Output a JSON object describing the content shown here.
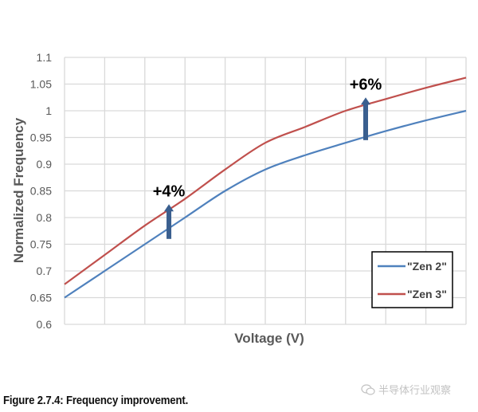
{
  "chart_data": {
    "type": "line",
    "title": "",
    "xlabel": "Voltage (V)",
    "ylabel": "Normalized Frequency",
    "ylim": [
      0.6,
      1.1
    ],
    "yticks": [
      0.6,
      0.65,
      0.7,
      0.75,
      0.8,
      0.85,
      0.9,
      0.95,
      1,
      1.05,
      1.1
    ],
    "ytick_labels": [
      "0.6",
      "0.65",
      "0.7",
      "0.75",
      "0.8",
      "0.85",
      "0.9",
      "0.95",
      "1",
      "1.05",
      "1.1"
    ],
    "x": [
      0,
      1,
      2,
      3,
      4,
      5,
      6,
      7,
      8,
      9,
      10
    ],
    "x_tick_labels_shown": false,
    "grid": true,
    "legend_position": "lower right (inside plot)",
    "series": [
      {
        "name": "\"Zen 2\"",
        "color": "#4F81BD",
        "values": [
          0.65,
          0.7,
          0.75,
          0.8,
          0.85,
          0.89,
          0.917,
          0.94,
          0.962,
          0.982,
          1.0
        ]
      },
      {
        "name": "\"Zen 3\"",
        "color": "#C0504D",
        "values": [
          0.675,
          0.73,
          0.785,
          0.835,
          0.89,
          0.94,
          0.97,
          1.0,
          1.022,
          1.043,
          1.062
        ]
      }
    ],
    "annotations": [
      {
        "text": "+4%",
        "x": 2.6,
        "arrow_from": 0.76,
        "arrow_to": 0.825,
        "arrow_color": "#3A5F8F"
      },
      {
        "text": "+6%",
        "x": 7.5,
        "arrow_from": 0.945,
        "arrow_to": 1.025,
        "arrow_color": "#3A5F8F"
      }
    ]
  },
  "caption": "Figure 2.7.4: Frequency improvement.",
  "watermark": {
    "icon": "wechat-icon",
    "text": "半导体行业观察"
  },
  "colors": {
    "zen2": "#4F81BD",
    "zen3": "#C0504D",
    "grid": "#D9D9D9",
    "arrow": "#3A5F8F",
    "axis_text": "#595959"
  }
}
